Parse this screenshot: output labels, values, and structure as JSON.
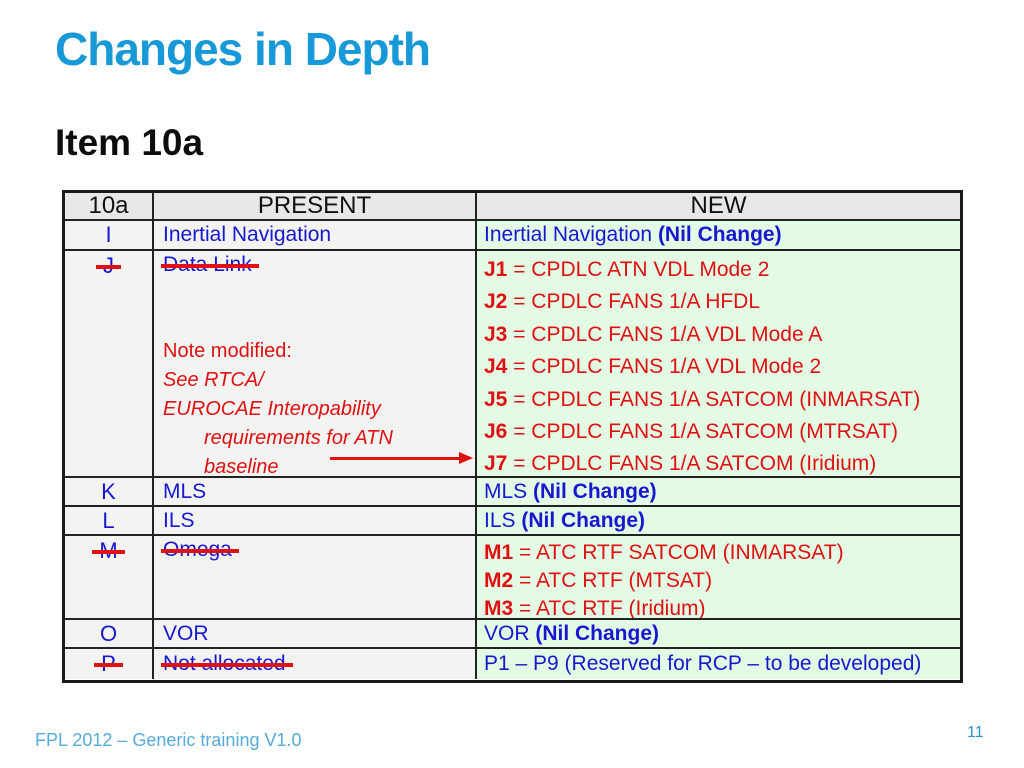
{
  "slide": {
    "title": "Changes in Depth",
    "subtitle": "Item 10a",
    "footer": "FPL 2012 – Generic training V1.0",
    "page_number": "11"
  },
  "colors": {
    "title_blue": "#1699d6",
    "cell_blue": "#1717cf",
    "cell_red": "#e01010",
    "header_bg": "#e8e8e7",
    "present_bg": "#f3f3f2",
    "new_bg": "#e3fae5"
  },
  "table": {
    "header": {
      "c1": "10a",
      "c2": "PRESENT",
      "c3": "NEW"
    },
    "row_i": {
      "code": "I",
      "present": "Inertial Navigation",
      "new_plain": "Inertial Navigation ",
      "new_bold": "(Nil Change)"
    },
    "row_j": {
      "code": "J",
      "present_struck": "Data Link",
      "note_title": "Note modified:",
      "note_line1": "See RTCA/",
      "note_line2": "EUROCAE Interopability",
      "note_line3": "requirements for ATN",
      "note_line4": "baseline",
      "lines": [
        {
          "bold": "J1",
          "rest": " = CPDLC ATN VDL Mode 2"
        },
        {
          "bold": "J2",
          "rest": " = CPDLC FANS 1/A HFDL"
        },
        {
          "bold": "J3",
          "rest": " = CPDLC FANS 1/A VDL Mode A"
        },
        {
          "bold": "J4",
          "rest": " = CPDLC FANS 1/A VDL Mode 2"
        },
        {
          "bold": "J5",
          "rest": " = CPDLC FANS 1/A SATCOM (INMARSAT)"
        },
        {
          "bold": "J6",
          "rest": " = CPDLC FANS 1/A SATCOM (MTRSAT)"
        },
        {
          "bold": "J7",
          "rest": " = CPDLC FANS 1/A SATCOM (Iridium)"
        }
      ]
    },
    "row_k": {
      "code": "K",
      "present": "MLS",
      "new_plain": "MLS ",
      "new_bold": "(Nil Change)"
    },
    "row_l": {
      "code": "L",
      "present": "ILS",
      "new_plain": "ILS ",
      "new_bold": "(Nil Change)"
    },
    "row_m": {
      "code": "M",
      "present_struck": "Omega",
      "lines": [
        {
          "bold": "M1",
          "rest": " = ATC RTF SATCOM (INMARSAT)"
        },
        {
          "bold": "M2",
          "rest": " = ATC RTF (MTSAT)"
        },
        {
          "bold": "M3",
          "rest": " = ATC RTF (Iridium)"
        }
      ]
    },
    "row_o": {
      "code": "O",
      "present": "VOR",
      "new_plain": "VOR ",
      "new_bold": "(Nil Change)"
    },
    "row_p": {
      "code": "P",
      "present_struck": "Not allocated",
      "new_text": "P1 – P9 (Reserved for RCP – to be developed)"
    }
  }
}
